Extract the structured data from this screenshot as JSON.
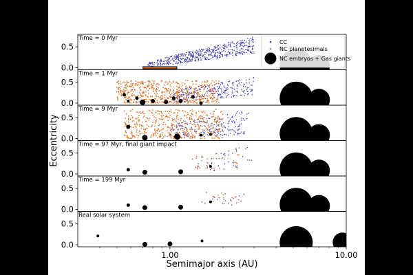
{
  "chart_data": {
    "type": "scatter",
    "xscale": "log",
    "xlim": [
      0.3,
      10.0
    ],
    "ylim": [
      -0.05,
      0.8
    ],
    "xlabel": "Semimajor axis (AU)",
    "ylabel": "Eccentricity",
    "x_tick_labels": [
      {
        "value": 1.0,
        "label": "1.00"
      },
      {
        "value": 10.0,
        "label": "10.00"
      }
    ],
    "y_tick_labels": [
      {
        "value": 0.0,
        "label": "0.0"
      },
      {
        "value": 0.5,
        "label": "0.5"
      }
    ],
    "legend": {
      "placement": "top-right",
      "entries": [
        {
          "label": "CC",
          "color": "#3b3bb0",
          "marker": "small-dot"
        },
        {
          "label": "NC planetesimals",
          "color": "#e07020",
          "marker": "small-dot"
        },
        {
          "label": "NC embryos + Gas giants",
          "color": "#000000",
          "marker": "large-dot"
        }
      ]
    },
    "panels": [
      {
        "title": "Time = 0 Myr",
        "nc_band": [
          0.7,
          1.1
        ],
        "cc_cloud": {
          "x_range": [
            0.75,
            3.0
          ],
          "e_min_start": 0.0,
          "e_min_end": 0.35,
          "e_max_start": 0.15,
          "e_max_end": 0.75,
          "count": 520
        },
        "nc_cloud": null,
        "bodies": [],
        "giants": [
          {
            "x": 5.2,
            "e": 0.05,
            "r": 24
          },
          {
            "x": 7.0,
            "e": 0.04,
            "r": 16
          }
        ]
      },
      {
        "title": "Time = 1 Myr",
        "nc_band": null,
        "cc_cloud": {
          "x_range": [
            1.0,
            3.0
          ],
          "e_min_start": 0.0,
          "e_min_end": 0.2,
          "e_max_start": 0.3,
          "e_max_end": 0.62,
          "count": 260
        },
        "nc_cloud": {
          "x_range": [
            0.5,
            1.9
          ],
          "e_range": [
            0.0,
            0.55
          ],
          "count": 560
        },
        "bodies": [
          {
            "x": 0.55,
            "e": 0.2,
            "r": 2.5
          },
          {
            "x": 0.58,
            "e": 0.05,
            "r": 2
          },
          {
            "x": 0.65,
            "e": 0.12,
            "r": 2.5
          },
          {
            "x": 0.7,
            "e": 0.02,
            "r": 4
          },
          {
            "x": 0.8,
            "e": 0.05,
            "r": 3
          },
          {
            "x": 0.95,
            "e": 0.03,
            "r": 3
          },
          {
            "x": 1.05,
            "e": 0.12,
            "r": 2.5
          },
          {
            "x": 1.15,
            "e": 0.05,
            "r": 3
          },
          {
            "x": 1.35,
            "e": 0.15,
            "r": 2.5
          },
          {
            "x": 1.5,
            "e": 0.0,
            "r": 2.5
          }
        ],
        "giants": [
          {
            "x": 5.2,
            "e": 0.12,
            "r": 24
          },
          {
            "x": 7.0,
            "e": 0.08,
            "r": 16
          }
        ]
      },
      {
        "title": "Time = 9 Myr",
        "nc_band": null,
        "cc_cloud": {
          "x_range": [
            1.0,
            2.8
          ],
          "e_min_start": 0.0,
          "e_min_end": 0.1,
          "e_max_start": 0.35,
          "e_max_end": 0.7,
          "count": 200
        },
        "nc_cloud": {
          "x_range": [
            0.55,
            2.0
          ],
          "e_range": [
            0.0,
            0.7
          ],
          "count": 480
        },
        "bodies": [
          {
            "x": 0.58,
            "e": 0.28,
            "r": 3
          },
          {
            "x": 0.72,
            "e": 0.02,
            "r": 4
          },
          {
            "x": 1.1,
            "e": 0.04,
            "r": 4.5
          },
          {
            "x": 1.5,
            "e": 0.08,
            "r": 2
          },
          {
            "x": 1.7,
            "e": 0.1,
            "r": 2
          }
        ],
        "giants": [
          {
            "x": 5.2,
            "e": 0.12,
            "r": 24
          },
          {
            "x": 7.0,
            "e": 0.08,
            "r": 16
          }
        ]
      },
      {
        "title": "Time = 97 Myr, final giant impact",
        "nc_band": null,
        "cc_cloud": {
          "x_range": [
            1.3,
            2.9
          ],
          "e_min_start": 0.05,
          "e_min_end": 0.1,
          "e_max_start": 0.4,
          "e_max_end": 0.7,
          "count": 45
        },
        "nc_cloud": {
          "x_range": [
            1.4,
            2.6
          ],
          "e_range": [
            0.1,
            0.5
          ],
          "count": 30
        },
        "bodies": [
          {
            "x": 0.58,
            "e": 0.1,
            "r": 2.5
          },
          {
            "x": 0.72,
            "e": 0.04,
            "r": 3.5
          },
          {
            "x": 1.15,
            "e": 0.05,
            "r": 3.5
          },
          {
            "x": 1.7,
            "e": 0.18,
            "r": 2
          }
        ],
        "giants": [
          {
            "x": 5.2,
            "e": 0.12,
            "r": 24
          },
          {
            "x": 7.0,
            "e": 0.08,
            "r": 16
          }
        ]
      },
      {
        "title": "Time = 199 Myr",
        "nc_band": null,
        "cc_cloud": {
          "x_range": [
            1.5,
            2.7
          ],
          "e_min_start": 0.1,
          "e_min_end": 0.1,
          "e_max_start": 0.4,
          "e_max_end": 0.45,
          "count": 22
        },
        "nc_cloud": {
          "x_range": [
            1.7,
            2.5
          ],
          "e_range": [
            0.15,
            0.4
          ],
          "count": 12
        },
        "bodies": [
          {
            "x": 0.58,
            "e": 0.1,
            "r": 2.5
          },
          {
            "x": 0.72,
            "e": 0.04,
            "r": 3.5
          },
          {
            "x": 1.15,
            "e": 0.05,
            "r": 3.5
          },
          {
            "x": 1.7,
            "e": 0.18,
            "r": 2
          }
        ],
        "giants": [
          {
            "x": 5.2,
            "e": 0.12,
            "r": 24
          },
          {
            "x": 7.0,
            "e": 0.08,
            "r": 16
          }
        ]
      },
      {
        "title": "Real solar system",
        "nc_band": null,
        "cc_cloud": null,
        "nc_cloud": null,
        "bodies": [
          {
            "x": 0.39,
            "e": 0.21,
            "r": 2
          },
          {
            "x": 0.72,
            "e": 0.01,
            "r": 3.5
          },
          {
            "x": 1.0,
            "e": 0.02,
            "r": 3.5
          },
          {
            "x": 1.52,
            "e": 0.09,
            "r": 2
          }
        ],
        "giants": [
          {
            "x": 5.2,
            "e": 0.05,
            "r": 24
          },
          {
            "x": 9.5,
            "e": 0.06,
            "r": 14
          }
        ]
      }
    ]
  }
}
